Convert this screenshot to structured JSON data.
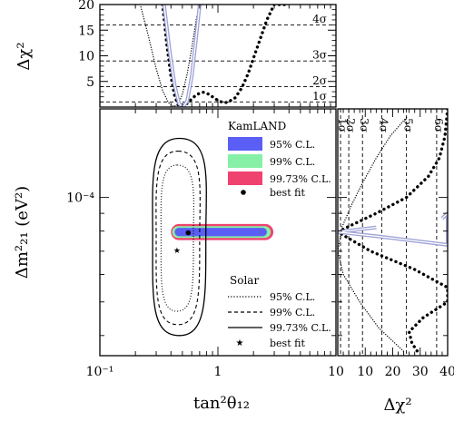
{
  "chart_data": [
    {
      "panel": "top",
      "type": "line",
      "xlabel": "",
      "ylabel": "Δχ²",
      "xscale": "log",
      "xlim": [
        0.1,
        10
      ],
      "ylim": [
        0,
        20
      ],
      "yticks": [
        "5",
        "10",
        "15",
        "20"
      ],
      "sigma_levels": [
        {
          "label": "1σ",
          "value": 1.0
        },
        {
          "label": "2σ",
          "value": 4.0
        },
        {
          "label": "3σ",
          "value": 9.0
        },
        {
          "label": "4σ",
          "value": 16.0
        }
      ],
      "series": [
        {
          "style": "thick-dotted",
          "x": [
            0.34,
            0.37,
            0.4,
            0.43,
            0.46,
            0.49,
            0.52,
            0.56,
            0.6,
            0.65,
            0.7,
            0.76,
            0.82,
            0.9,
            1.0,
            1.1,
            1.2,
            1.4,
            1.6,
            1.8,
            2.0,
            2.3,
            2.6,
            3.0,
            3.4,
            3.8
          ],
          "y": [
            20,
            12,
            6,
            2.2,
            0.4,
            0.1,
            0.3,
            0.9,
            1.6,
            2.3,
            2.7,
            2.9,
            2.6,
            2.0,
            1.3,
            0.9,
            0.9,
            1.8,
            3.8,
            6.5,
            9.5,
            13.5,
            17.0,
            20,
            20,
            20
          ]
        },
        {
          "style": "thin-dotted",
          "x": [
            0.22,
            0.26,
            0.3,
            0.34,
            0.38,
            0.42,
            0.46,
            0.5,
            0.55,
            0.6,
            0.66,
            0.72
          ],
          "y": [
            20,
            13.5,
            7.5,
            3.2,
            0.9,
            0.1,
            0.5,
            2.5,
            6.5,
            11.5,
            17.5,
            20
          ]
        },
        {
          "style": "combined",
          "x": [
            0.35,
            0.39,
            0.43,
            0.47,
            0.51,
            0.55,
            0.6,
            0.65,
            0.7
          ],
          "y": [
            20,
            11,
            4.2,
            0.6,
            0.1,
            1.2,
            6.0,
            13.0,
            20
          ]
        }
      ]
    },
    {
      "panel": "main",
      "type": "contour",
      "xlabel": "tan²θ₁₂",
      "ylabel": "Δm²₂₁ (eV²)",
      "xscale": "log",
      "yscale": "log",
      "xlim": [
        0.1,
        10
      ],
      "ylim": [
        3.5e-05,
        0.00018
      ],
      "xticks": [
        "10⁻¹",
        "1",
        "10"
      ],
      "yticks": [
        "10⁻⁴"
      ],
      "legend_kamland": {
        "title": "KamLAND",
        "items": [
          {
            "label": "95% C.L.",
            "color": "#5a5ef5"
          },
          {
            "label": "99% C.L.",
            "color": "#86f0a6"
          },
          {
            "label": "99.73% C.L.",
            "color": "#f0426f"
          },
          {
            "label": "best fit",
            "marker": "dot"
          }
        ]
      },
      "legend_solar": {
        "title": "Solar",
        "items": [
          {
            "label": "95% C.L.",
            "line": "dotted"
          },
          {
            "label": "99% C.L.",
            "line": "dashed"
          },
          {
            "label": "99.73% C.L.",
            "line": "solid"
          },
          {
            "label": "best fit",
            "marker": "star"
          }
        ]
      },
      "kamland_bands": [
        {
          "cl": "99.73%",
          "x_range": [
            0.4,
            2.95
          ],
          "y_center": 7.95e-05,
          "y_halfwidth_factor": 1.055
        },
        {
          "cl": "99%",
          "x_range": [
            0.41,
            2.8
          ],
          "y_center": 7.95e-05,
          "y_halfwidth_factor": 1.04
        },
        {
          "cl": "95%",
          "x_range": [
            0.43,
            2.6
          ],
          "y_center": 7.95e-05,
          "y_halfwidth_factor": 1.028
        }
      ],
      "solar_contours": [
        {
          "cl": "95%",
          "x_range": [
            0.33,
            0.62
          ],
          "y_range": [
            4.7e-05,
            0.000124
          ]
        },
        {
          "cl": "99%",
          "x_range": [
            0.3,
            0.7
          ],
          "y_range": [
            4.3e-05,
            0.000136
          ]
        },
        {
          "cl": "99.73%",
          "x_range": [
            0.28,
            0.79
          ],
          "y_range": [
            4e-05,
            0.000148
          ]
        }
      ],
      "best_fit_kamland": {
        "x": 0.56,
        "y": 7.91e-05
      },
      "best_fit_solar": {
        "x": 0.45,
        "y": 7.05e-05
      }
    },
    {
      "panel": "right",
      "type": "line",
      "xlabel": "Δχ²",
      "ylabel": "",
      "xlim": [
        0,
        40
      ],
      "xticks": [
        "10",
        "20",
        "30",
        "40"
      ],
      "sigma_levels": [
        {
          "label": "1σ",
          "value": 1.0
        },
        {
          "label": "2σ",
          "value": 4.0
        },
        {
          "label": "3σ",
          "value": 9.0
        },
        {
          "label": "4σ",
          "value": 16.0
        },
        {
          "label": "5σ",
          "value": 25.0
        },
        {
          "label": "6σ",
          "value": 36.0
        }
      ],
      "series": [
        {
          "style": "thick-dotted",
          "y": [
            0.00018,
            0.00015,
            0.00013,
            0.000115,
            0.0001,
            9e-05,
            8.25e-05,
            7.95e-05,
            7.7e-05,
            7e-05,
            6.2e-05,
            5.5e-05,
            5e-05,
            4.5e-05,
            4.1e-05,
            3.8e-05,
            3.6e-05
          ],
          "x": [
            40,
            39,
            37,
            33,
            25,
            14,
            4,
            0,
            3,
            12,
            28,
            40,
            40,
            31,
            26,
            27,
            29
          ]
        },
        {
          "style": "thin-dotted",
          "y": [
            0.00017,
            0.00015,
            0.00013,
            0.00011,
            9.5e-05,
            8.2e-05,
            7e-05,
            6e-05,
            5e-05,
            4.2e-05,
            3.6e-05
          ],
          "x": [
            25,
            19,
            14,
            9,
            5,
            1.5,
            0,
            2,
            8,
            15,
            24
          ]
        },
        {
          "style": "combined",
          "y": [
            8.2e-05,
            7.95e-05,
            7.7e-05,
            7.3e-05,
            9e-05,
            8.7e-05
          ],
          "x": [
            14,
            0.1,
            16,
            40,
            40,
            38
          ]
        }
      ]
    }
  ]
}
